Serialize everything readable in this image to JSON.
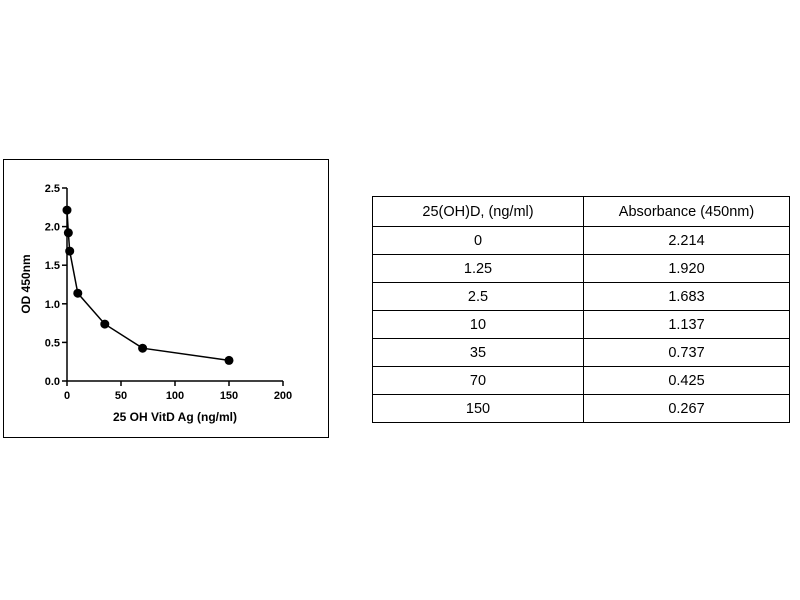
{
  "chart_data": {
    "type": "line",
    "xlabel": "25 OH VitD Ag (ng/ml)",
    "ylabel": "OD 450nm",
    "xlim": [
      0,
      200
    ],
    "ylim": [
      0,
      2.5
    ],
    "x_ticks": [
      "0",
      "50",
      "100",
      "150",
      "200"
    ],
    "y_ticks": [
      "0.0",
      "0.5",
      "1.0",
      "1.5",
      "2.0",
      "2.5"
    ],
    "x_tick_values": [
      0,
      50,
      100,
      150,
      200
    ],
    "y_tick_values": [
      0,
      0.5,
      1.0,
      1.5,
      2.0,
      2.5
    ],
    "grid": false,
    "series": [
      {
        "x": [
          0,
          1.25,
          2.5,
          10,
          35,
          70,
          150
        ],
        "y": [
          2.214,
          1.92,
          1.683,
          1.137,
          0.737,
          0.425,
          0.267
        ]
      }
    ]
  },
  "table": {
    "headers": [
      "25(OH)D,  (ng/ml)",
      "Absorbance (450nm)"
    ],
    "rows": [
      [
        "0",
        "2.214"
      ],
      [
        "1.25",
        "1.920"
      ],
      [
        "2.5",
        "1.683"
      ],
      [
        "10",
        "1.137"
      ],
      [
        "35",
        "0.737"
      ],
      [
        "70",
        "0.425"
      ],
      [
        "150",
        "0.267"
      ]
    ]
  }
}
